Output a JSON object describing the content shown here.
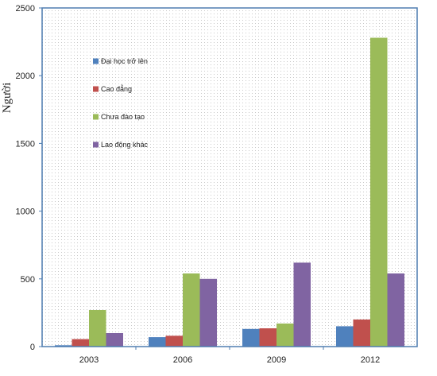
{
  "chart_data": {
    "type": "bar",
    "title": "",
    "xlabel": "",
    "ylabel": "Người",
    "categories": [
      "2003",
      "2006",
      "2009",
      "2012"
    ],
    "ylim": [
      0,
      2500
    ],
    "yticks": [
      0,
      500,
      1000,
      1500,
      2000,
      2500
    ],
    "background": "dotted",
    "legend_position": "inside-top-left",
    "series": [
      {
        "name": "Đại học trở lên",
        "color": "#4f81bd",
        "values": [
          10,
          70,
          130,
          150
        ]
      },
      {
        "name": "Cao đẳng",
        "color": "#c0504d",
        "values": [
          55,
          80,
          135,
          200
        ]
      },
      {
        "name": "Chưa đào tạo",
        "color": "#9bbb59",
        "values": [
          270,
          540,
          170,
          2280
        ]
      },
      {
        "name": "Lao động khác",
        "color": "#8064a2",
        "values": [
          100,
          500,
          620,
          540
        ]
      }
    ]
  }
}
